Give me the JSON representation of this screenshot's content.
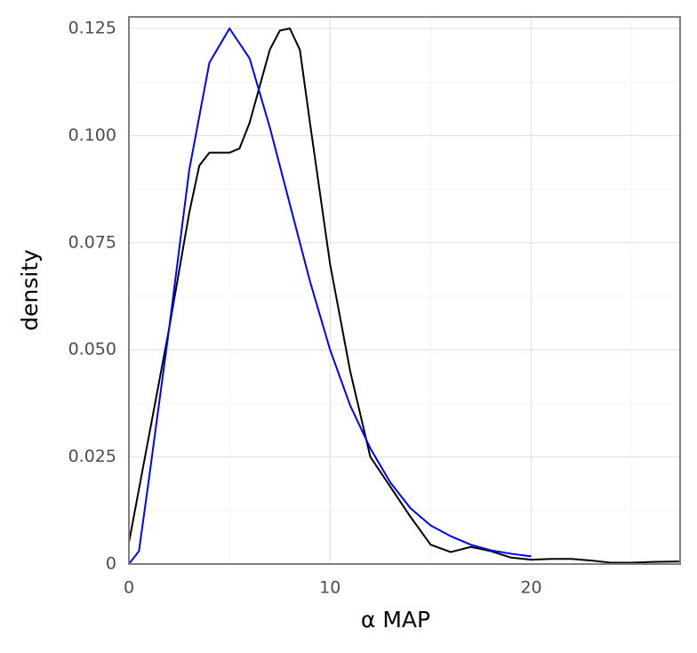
{
  "chart_data": {
    "type": "line",
    "x_label": "α MAP",
    "y_label": "density",
    "xlim": [
      0,
      27.4
    ],
    "ylim": [
      0,
      0.1277
    ],
    "xticks": [
      0,
      10,
      20
    ],
    "yticks": [
      0,
      0.025,
      {
        "value": 0.05,
        "label": "0.050"
      },
      0.075,
      {
        "value": 0.1,
        "label": "0.100"
      },
      0.125
    ],
    "grid": true,
    "series": [
      {
        "color": "#000000",
        "x": [
          0,
          1,
          2,
          3,
          3.5,
          4,
          5,
          5.5,
          6,
          7,
          7.5,
          8,
          8.5,
          9,
          10,
          11,
          12,
          13,
          14,
          15,
          16,
          17,
          18,
          19,
          20,
          21,
          22,
          23,
          24,
          25,
          26,
          27.4
        ],
        "values": [
          0.005,
          0.03,
          0.055,
          0.082,
          0.093,
          0.096,
          0.096,
          0.097,
          0.103,
          0.12,
          0.1245,
          0.125,
          0.12,
          0.103,
          0.07,
          0.045,
          0.025,
          0.018,
          0.011,
          0.0045,
          0.0028,
          0.004,
          0.003,
          0.0015,
          0.001,
          0.0012,
          0.0012,
          0.0008,
          0.0003,
          0.0003,
          0.0005,
          0.0006
        ]
      },
      {
        "color": "#0000ff",
        "x": [
          0,
          0.5,
          1,
          2,
          3,
          4,
          5,
          6,
          7,
          8,
          9,
          10,
          11,
          12,
          13,
          14,
          15,
          16,
          17,
          18,
          19,
          20
        ],
        "values": [
          0,
          0.003,
          0.02,
          0.055,
          0.092,
          0.117,
          0.125,
          0.118,
          0.102,
          0.084,
          0.066,
          0.05,
          0.037,
          0.027,
          0.019,
          0.013,
          0.009,
          0.0065,
          0.0045,
          0.0032,
          0.0024,
          0.0018
        ]
      }
    ]
  }
}
